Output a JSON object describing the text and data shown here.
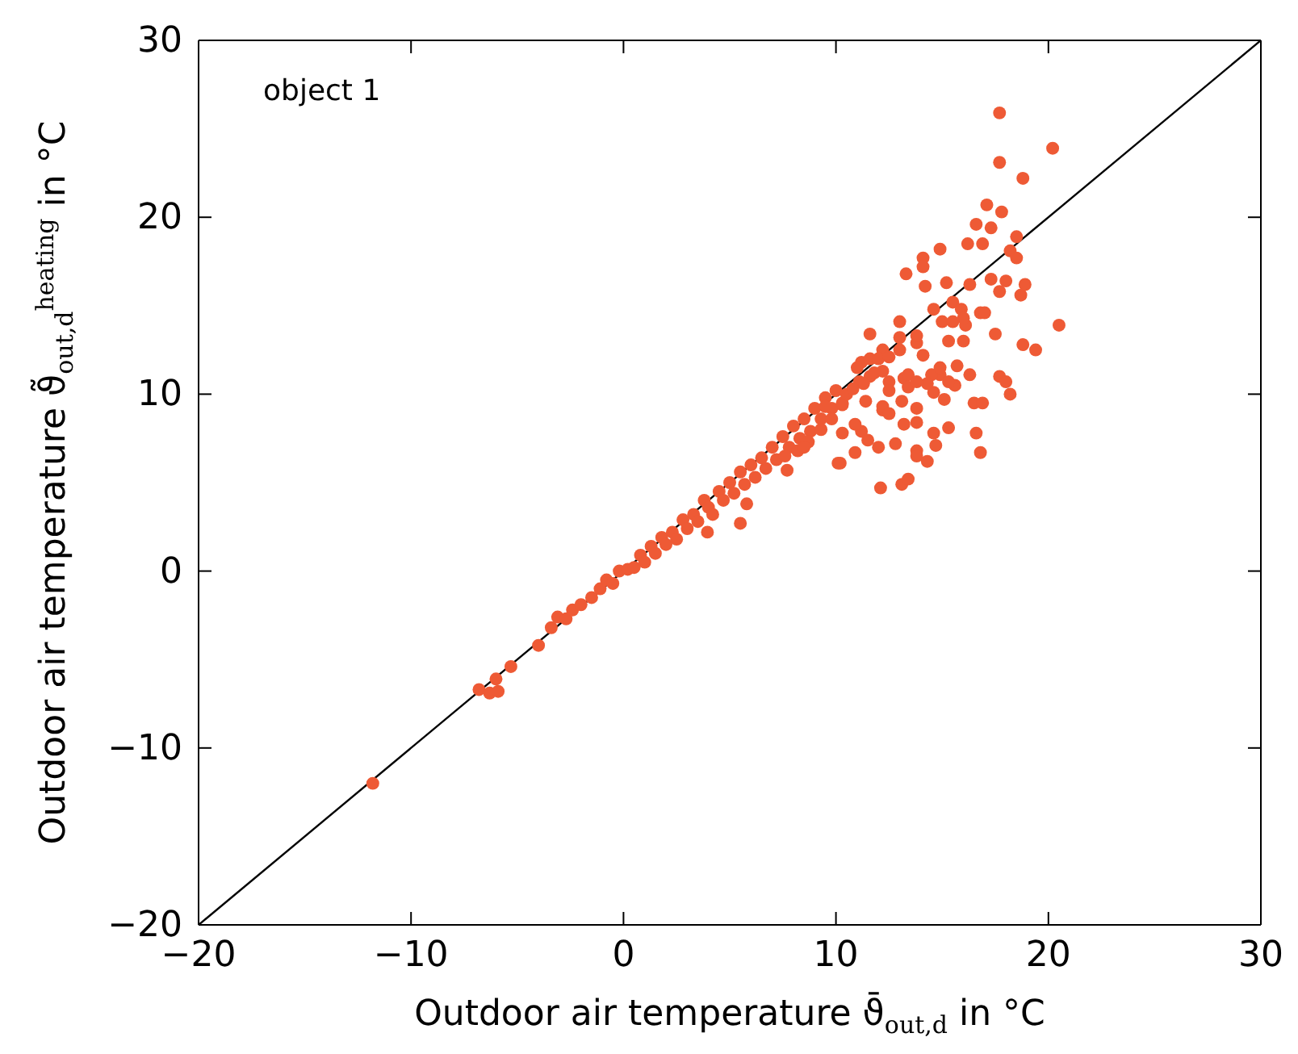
{
  "chart_data": {
    "type": "scatter",
    "xlabel": "Outdoor air temperature ϑ̄$_{out,d}$ in °C",
    "ylabel": "Outdoor air temperature ϑ̃$_{out,d}$$^{heating}$ in °C",
    "annotations": [
      "object 1"
    ],
    "xlim": [
      -20,
      30
    ],
    "ylim": [
      -20,
      30
    ],
    "xticks": [
      -20,
      -10,
      0,
      10,
      20,
      30
    ],
    "yticks": [
      -20,
      -10,
      0,
      10,
      20,
      30
    ],
    "grid": false,
    "marker": "circle",
    "series": [
      {
        "type": "line",
        "marker": "none",
        "color": "#000000",
        "x": [
          -20,
          30
        ],
        "values": [
          -20,
          30
        ]
      },
      {
        "color": "#ee5a35",
        "x": [
          -11.8,
          -6.8,
          -6.3,
          -6,
          -5.9,
          -5.3,
          -4,
          -3.4,
          -3.1,
          -2.7,
          -2.4,
          -2,
          -1.5,
          -1.1,
          -0.8,
          -0.5,
          -0.2,
          0.2,
          0.5,
          0.8,
          1,
          1.3,
          1.5,
          1.8,
          2,
          2.3,
          2.5,
          2.8,
          3,
          3.3,
          3.5,
          3.8,
          4,
          4.2,
          4.5,
          4.7,
          5,
          5.2,
          5.5,
          5.7,
          6,
          6.2,
          6.5,
          6.7,
          7,
          7.2,
          7.5,
          7.8,
          8,
          8.3,
          8.5,
          8.8,
          9,
          9.3,
          9.5,
          9.8,
          10,
          10.3,
          3.95,
          5.5,
          5.8,
          10.2,
          7.7,
          17.7,
          20.2,
          17.7,
          18.8,
          17.1,
          17.8,
          16.6,
          17.3,
          16.2,
          16.9,
          18.5,
          14.9,
          14.1,
          14.1,
          18.2,
          18.5,
          13.3,
          15.2,
          14.2,
          16.3,
          17.3,
          18,
          18.9,
          17.7,
          18.7,
          20.5,
          15.5,
          15.9,
          16.8,
          17,
          14.6,
          13,
          15,
          16.1,
          17.5,
          11.6,
          15.3,
          16,
          18.8,
          19.4,
          12.2,
          13.8,
          14.1,
          15.7,
          14.9,
          11.2,
          13.2,
          16.3,
          17.7,
          18,
          18.2,
          16.5,
          16.9,
          15.6,
          15.1,
          14.6,
          12.5,
          13.8,
          13.1,
          11.4,
          12.2,
          15.3,
          13.8,
          16.6,
          14.6,
          10.3,
          11.2,
          11.5,
          12.8,
          14.7,
          16.8,
          10.9,
          13.8,
          13.8,
          14.3,
          10.1,
          12.1,
          13.1,
          13.4,
          11.6,
          13,
          13.8,
          11.6,
          11.1,
          12.2,
          13.4,
          14.5,
          14.9,
          12.5,
          13.4,
          14.3,
          15.3,
          12.2,
          10.3,
          10.9,
          12.5,
          13.2,
          13.8,
          15.5,
          16,
          13,
          12,
          9.5,
          10.5,
          11,
          11.3,
          12,
          12.5,
          11.8,
          10.8,
          9.3,
          8.7,
          9.8,
          8.2,
          7.6,
          8.5
        ],
        "values": [
          -12,
          -6.7,
          -6.9,
          -6.1,
          -6.8,
          -5.4,
          -4.2,
          -3.2,
          -2.6,
          -2.7,
          -2.2,
          -1.9,
          -1.5,
          -1,
          -0.5,
          -0.7,
          0,
          0.1,
          0.2,
          0.9,
          0.5,
          1.4,
          1,
          1.9,
          1.5,
          2.2,
          1.8,
          2.9,
          2.4,
          3.2,
          2.8,
          4,
          3.6,
          3.2,
          4.5,
          4,
          5,
          4.4,
          5.6,
          4.9,
          6,
          5.3,
          6.4,
          5.8,
          7,
          6.3,
          7.6,
          7,
          8.2,
          7.5,
          8.6,
          7.9,
          9.2,
          8.6,
          9.8,
          9.2,
          10.2,
          9.4,
          2.2,
          2.7,
          3.8,
          6.1,
          5.7,
          25.9,
          23.9,
          23.1,
          22.2,
          20.7,
          20.3,
          19.6,
          19.4,
          18.5,
          18.5,
          18.9,
          18.2,
          17.7,
          17.2,
          18.1,
          17.7,
          16.8,
          16.3,
          16.1,
          16.2,
          16.5,
          16.4,
          16.2,
          15.8,
          15.6,
          13.9,
          15.2,
          14.8,
          14.6,
          14.6,
          14.8,
          14.1,
          14.1,
          13.9,
          13.4,
          13.4,
          13,
          13,
          12.8,
          12.5,
          12.5,
          12.9,
          12.2,
          11.6,
          11.1,
          11.8,
          10.9,
          11.1,
          11,
          10.7,
          10,
          9.5,
          9.5,
          10.5,
          9.7,
          10.1,
          10.7,
          9.2,
          9.6,
          9.6,
          9.1,
          8.1,
          8.4,
          7.8,
          7.8,
          7.8,
          7.9,
          7.4,
          7.2,
          7.1,
          6.7,
          6.7,
          6.8,
          6.5,
          6.2,
          6.1,
          4.7,
          4.9,
          5.2,
          12,
          13.2,
          13.3,
          11,
          10.7,
          11.3,
          11.1,
          11.1,
          11.5,
          10.2,
          10.4,
          10.6,
          10.7,
          9.3,
          9.5,
          8.3,
          8.9,
          8.3,
          10.7,
          14.1,
          14.3,
          12.5,
          7,
          9.3,
          10,
          11.5,
          10.6,
          12,
          12.1,
          11.2,
          10.3,
          8,
          7.3,
          8.6,
          6.8,
          6.5,
          7
        ]
      }
    ]
  }
}
